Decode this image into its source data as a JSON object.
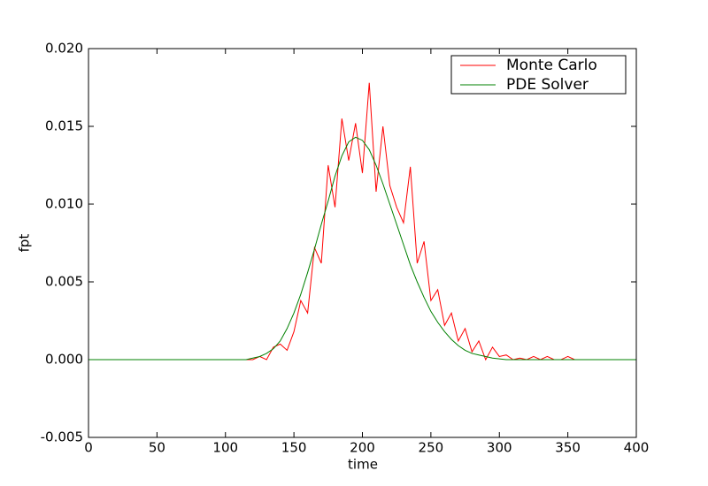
{
  "chart_data": {
    "type": "line",
    "xlabel": "time",
    "ylabel": "fpt",
    "x": [
      0,
      5,
      10,
      15,
      20,
      25,
      30,
      35,
      40,
      45,
      50,
      55,
      60,
      65,
      70,
      75,
      80,
      85,
      90,
      95,
      100,
      105,
      110,
      115,
      120,
      125,
      130,
      135,
      140,
      145,
      150,
      155,
      160,
      165,
      170,
      175,
      180,
      185,
      190,
      195,
      200,
      205,
      210,
      215,
      220,
      225,
      230,
      235,
      240,
      245,
      250,
      255,
      260,
      265,
      270,
      275,
      280,
      285,
      290,
      295,
      300,
      305,
      310,
      315,
      320,
      325,
      330,
      335,
      340,
      345,
      350,
      355,
      360,
      365,
      370,
      375,
      380,
      385,
      390,
      395,
      400
    ],
    "series": [
      {
        "name": "Monte Carlo",
        "color": "#ff0000",
        "values": [
          0,
          0,
          0,
          0,
          0,
          0,
          0,
          0,
          0,
          0,
          0,
          0,
          0,
          0,
          0,
          0,
          0,
          0,
          0,
          0,
          0,
          0,
          0,
          0,
          0,
          0.0002,
          0,
          0.0008,
          0.001,
          0.0006,
          0.0018,
          0.0038,
          0.003,
          0.0072,
          0.0062,
          0.0125,
          0.0098,
          0.0155,
          0.0128,
          0.0152,
          0.012,
          0.0178,
          0.0108,
          0.015,
          0.0112,
          0.0098,
          0.0088,
          0.0124,
          0.0062,
          0.0076,
          0.0038,
          0.0045,
          0.0022,
          0.003,
          0.0012,
          0.002,
          0.0005,
          0.0012,
          0,
          0.0008,
          0.0002,
          0.0003,
          0,
          0.0001,
          0,
          0.0002,
          0,
          0.0002,
          0,
          0,
          0.0002,
          0,
          0,
          0,
          0,
          0,
          0,
          0,
          0,
          0,
          0
        ]
      },
      {
        "name": "PDE Solver",
        "color": "#008000",
        "values": [
          0,
          0,
          0,
          0,
          0,
          0,
          0,
          0,
          0,
          0,
          0,
          0,
          0,
          0,
          0,
          0,
          0,
          0,
          0,
          0,
          0,
          0,
          0,
          0,
          0.0001,
          0.0002,
          0.0004,
          0.0007,
          0.0012,
          0.002,
          0.003,
          0.0042,
          0.0056,
          0.0071,
          0.0087,
          0.0102,
          0.0118,
          0.0131,
          0.014,
          0.0143,
          0.0141,
          0.0135,
          0.0125,
          0.0113,
          0.01,
          0.0087,
          0.0074,
          0.0061,
          0.005,
          0.004,
          0.0031,
          0.0024,
          0.0018,
          0.0013,
          0.0009,
          0.0006,
          0.0004,
          0.0003,
          0.0002,
          0.0001,
          5e-05,
          0,
          0,
          0,
          0,
          0,
          0,
          0,
          0,
          0,
          0,
          0,
          0,
          0,
          0,
          0,
          0,
          0,
          0,
          0,
          0
        ]
      }
    ],
    "xlim": [
      0,
      400
    ],
    "xticks": [
      0,
      50,
      100,
      150,
      200,
      250,
      300,
      350,
      400
    ],
    "ylim": [
      -0.005,
      0.02
    ],
    "yticks": [
      {
        "value": -0.005,
        "label": "-0.005"
      },
      {
        "value": 0,
        "label": "0.000"
      },
      {
        "value": 0.005,
        "label": "0.005"
      },
      {
        "value": 0.01,
        "label": "0.010"
      },
      {
        "value": 0.015,
        "label": "0.015"
      },
      {
        "value": 0.02,
        "label": "0.020"
      }
    ],
    "grid": false,
    "legend": "upper right"
  }
}
